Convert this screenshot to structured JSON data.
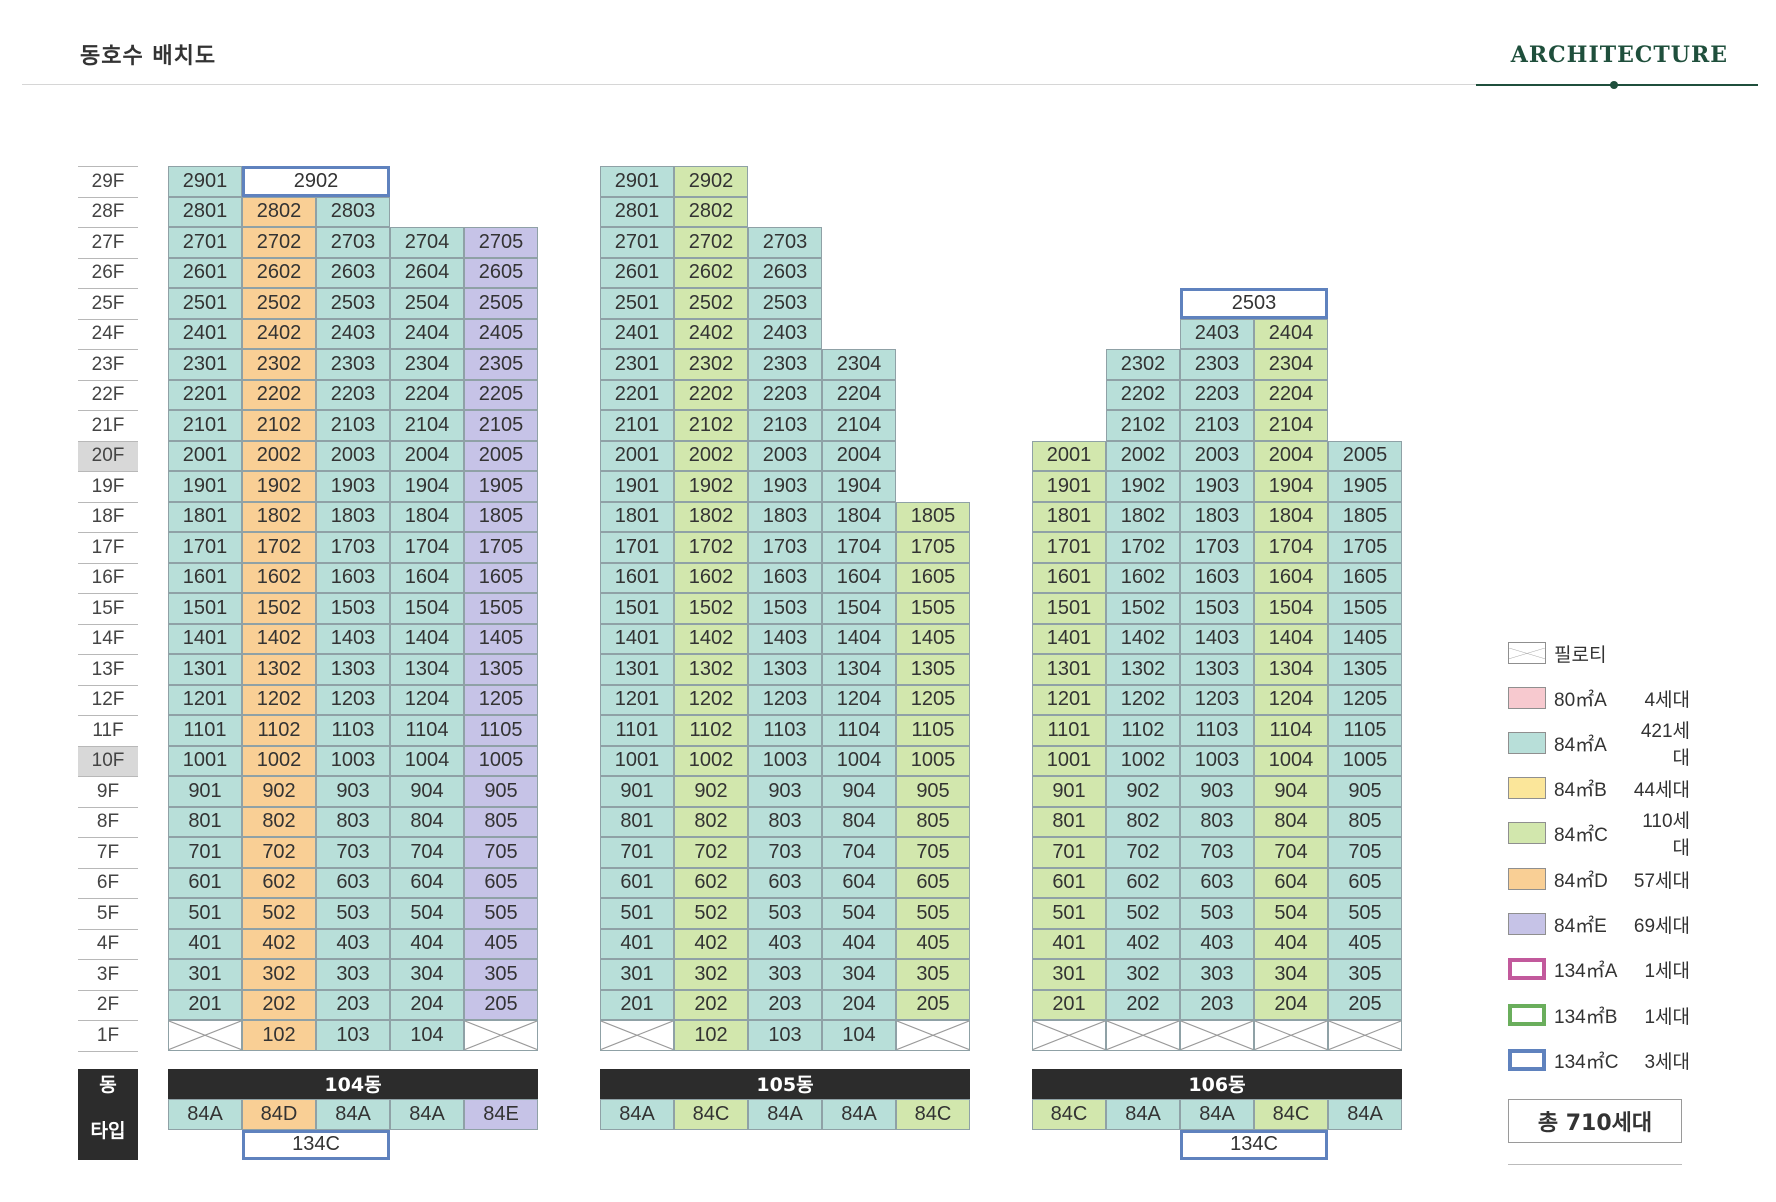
{
  "header": {
    "title": "동호수 배치도",
    "brand": "ARCHITECTURE"
  },
  "labels": {
    "dong": "동",
    "type": "타입"
  },
  "colors": {
    "84A": "#b8dfd9",
    "84B": "#fbe69a",
    "84C": "#d2e7ad",
    "84D": "#f9cf95",
    "84E": "#c6c3e7",
    "80A": "#f7c9cf",
    "134A": "#c2599c",
    "134B": "#6aae5c",
    "134C": "#5f82be",
    "pilotis_line": "#999999",
    "bar": "#2c2c2c"
  },
  "floors": [
    "29F",
    "28F",
    "27F",
    "26F",
    "25F",
    "24F",
    "23F",
    "22F",
    "21F",
    "20F",
    "19F",
    "18F",
    "17F",
    "16F",
    "15F",
    "14F",
    "13F",
    "12F",
    "11F",
    "10F",
    "9F",
    "8F",
    "7F",
    "6F",
    "5F",
    "4F",
    "3F",
    "2F",
    "1F"
  ],
  "highlight_floors": [
    "20F",
    "10F"
  ],
  "buildings": [
    {
      "name": "104동",
      "column_types": [
        "84A",
        "84D",
        "84A",
        "84A",
        "84E"
      ],
      "cells": [
        {
          "floor": 29,
          "col": 1,
          "label": "2901"
        },
        {
          "floor": 29,
          "col": 2,
          "span": 2,
          "label": "2902",
          "type": "134C"
        },
        {
          "floor": 28,
          "col": 1,
          "label": "2801"
        },
        {
          "floor": 28,
          "col": 2,
          "label": "2802"
        },
        {
          "floor": 28,
          "col": 3,
          "label": "2803"
        },
        {
          "floor": 1,
          "col": 1,
          "pilotis": true
        },
        {
          "floor": 1,
          "col": 5,
          "pilotis": true
        }
      ],
      "standard": {
        "from": 2,
        "to": 27,
        "cols": [
          1,
          2,
          3,
          4,
          5
        ]
      },
      "first_floor": [
        2,
        3,
        4
      ],
      "bottom_label": {
        "label": "134C",
        "col": 2,
        "span": 2
      }
    },
    {
      "name": "105동",
      "column_types": [
        "84A",
        "84C",
        "84A",
        "84A",
        "84C"
      ],
      "cells": [
        {
          "floor": 29,
          "col": 1,
          "label": "2901"
        },
        {
          "floor": 29,
          "col": 2,
          "label": "2902"
        },
        {
          "floor": 28,
          "col": 1,
          "label": "2801"
        },
        {
          "floor": 28,
          "col": 2,
          "label": "2802"
        },
        {
          "floor": 1,
          "col": 1,
          "pilotis": true
        },
        {
          "floor": 1,
          "col": 5,
          "pilotis": true
        }
      ],
      "ranges": [
        {
          "from": 24,
          "to": 27,
          "cols": [
            1,
            2,
            3
          ]
        },
        {
          "from": 19,
          "to": 23,
          "cols": [
            1,
            2,
            3,
            4
          ]
        },
        {
          "from": 2,
          "to": 18,
          "cols": [
            1,
            2,
            3,
            4,
            5
          ]
        }
      ],
      "first_floor": [
        2,
        3,
        4
      ]
    },
    {
      "name": "106동",
      "column_types": [
        "84C",
        "84A",
        "84A",
        "84C",
        "84A"
      ],
      "cells": [
        {
          "floor": 25,
          "col": 3,
          "span": 2,
          "label": "2503",
          "type": "134C"
        },
        {
          "floor": 24,
          "col": 3,
          "label": "2403"
        },
        {
          "floor": 24,
          "col": 4,
          "label": "2404"
        },
        {
          "floor": 23,
          "col": 2,
          "label": "2302"
        },
        {
          "floor": 23,
          "col": 3,
          "label": "2303"
        },
        {
          "floor": 23,
          "col": 4,
          "label": "2304"
        },
        {
          "floor": 22,
          "col": 2,
          "label": "2202"
        },
        {
          "floor": 22,
          "col": 3,
          "label": "2203"
        },
        {
          "floor": 22,
          "col": 4,
          "label": "2204"
        },
        {
          "floor": 21,
          "col": 2,
          "label": "2102"
        },
        {
          "floor": 21,
          "col": 3,
          "label": "2103"
        },
        {
          "floor": 21,
          "col": 4,
          "label": "2104"
        }
      ],
      "ranges": [
        {
          "from": 2,
          "to": 20,
          "cols": [
            1,
            2,
            3,
            4,
            5
          ]
        }
      ],
      "pilotis_row": true,
      "bottom_label": {
        "label": "134C",
        "col": 3,
        "span": 2
      }
    }
  ],
  "legend": {
    "items": [
      {
        "key": "pilotis",
        "name": "필로티",
        "count": ""
      },
      {
        "key": "80A",
        "name": "80㎡A",
        "count": "4세대"
      },
      {
        "key": "84A",
        "name": "84㎡A",
        "count": "421세대"
      },
      {
        "key": "84B",
        "name": "84㎡B",
        "count": "44세대"
      },
      {
        "key": "84C",
        "name": "84㎡C",
        "count": "110세대"
      },
      {
        "key": "84D",
        "name": "84㎡D",
        "count": "57세대"
      },
      {
        "key": "84E",
        "name": "84㎡E",
        "count": "69세대"
      },
      {
        "key": "134A",
        "name": "134㎡A",
        "count": "1세대"
      },
      {
        "key": "134B",
        "name": "134㎡B",
        "count": "1세대"
      },
      {
        "key": "134C",
        "name": "134㎡C",
        "count": "3세대"
      }
    ],
    "total": "총 710세대"
  }
}
